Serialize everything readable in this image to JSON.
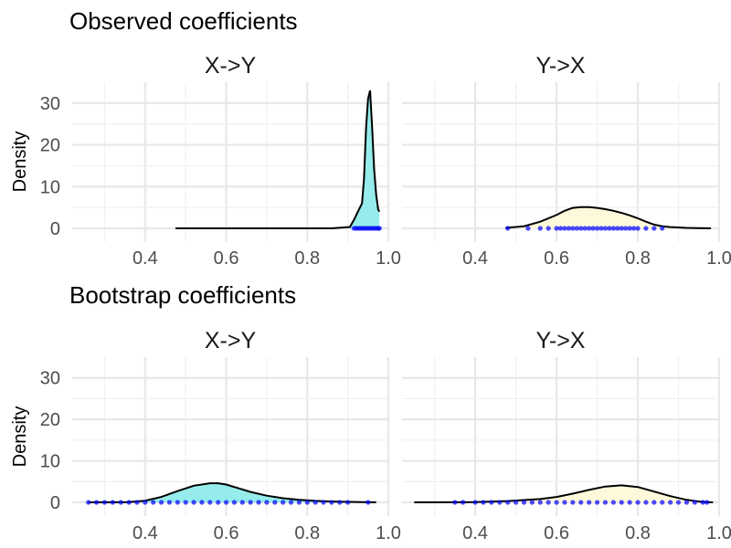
{
  "chart_data": [
    {
      "title": "Observed coefficients",
      "type": "area",
      "ylabel": "Density",
      "xlim": [
        0.22,
        1.0
      ],
      "ylim": [
        0,
        35
      ],
      "x_ticks": [
        "0.4",
        "0.6",
        "0.8",
        "1.0"
      ],
      "y_ticks": [
        "0",
        "10",
        "20",
        "30"
      ],
      "grid": true,
      "panels": [
        {
          "facet_label": "X->Y",
          "fill": "#96ecea",
          "density_x": [
            0.475,
            0.86,
            0.905,
            0.915,
            0.925,
            0.935,
            0.94,
            0.945,
            0.95,
            0.955,
            0.96,
            0.965,
            0.97,
            0.975,
            0.978
          ],
          "density_y": [
            0,
            0,
            0.3,
            2,
            4,
            6,
            12,
            24,
            31,
            33,
            24,
            14,
            8,
            4.5,
            4
          ],
          "rug_x": [
            0.915,
            0.92,
            0.925,
            0.93,
            0.935,
            0.94,
            0.945,
            0.95,
            0.955,
            0.96,
            0.965,
            0.97,
            0.975,
            0.978
          ]
        },
        {
          "facet_label": "Y->X",
          "fill": "#fff9db",
          "density_x": [
            0.475,
            0.52,
            0.56,
            0.6,
            0.62,
            0.64,
            0.66,
            0.68,
            0.7,
            0.72,
            0.74,
            0.76,
            0.78,
            0.8,
            0.82,
            0.84,
            0.86,
            0.88,
            0.92,
            0.98
          ],
          "density_y": [
            0.1,
            0.5,
            1.6,
            3.2,
            4.2,
            4.9,
            5.1,
            5.1,
            4.9,
            4.6,
            4.2,
            3.7,
            3.1,
            2.4,
            1.6,
            0.9,
            0.5,
            0.3,
            0.1,
            0
          ],
          "rug_x": [
            0.48,
            0.53,
            0.56,
            0.58,
            0.6,
            0.61,
            0.62,
            0.63,
            0.64,
            0.65,
            0.66,
            0.67,
            0.68,
            0.69,
            0.7,
            0.71,
            0.72,
            0.73,
            0.74,
            0.75,
            0.76,
            0.77,
            0.78,
            0.79,
            0.8,
            0.82,
            0.84,
            0.86
          ]
        }
      ]
    },
    {
      "title": "Bootstrap coefficients",
      "type": "area",
      "ylabel": "Density",
      "xlim": [
        0.22,
        1.0
      ],
      "ylim": [
        0,
        35
      ],
      "x_ticks": [
        "0.4",
        "0.6",
        "0.8",
        "1.0"
      ],
      "y_ticks": [
        "0",
        "10",
        "20",
        "30"
      ],
      "grid": true,
      "panels": [
        {
          "facet_label": "X->Y",
          "fill": "#96ecea",
          "density_x": [
            0.26,
            0.36,
            0.4,
            0.44,
            0.48,
            0.52,
            0.56,
            0.58,
            0.6,
            0.63,
            0.66,
            0.7,
            0.74,
            0.78,
            0.82,
            0.86,
            0.9,
            0.97
          ],
          "density_y": [
            0,
            0.05,
            0.4,
            1.3,
            2.7,
            4.0,
            4.6,
            4.6,
            4.3,
            3.4,
            2.5,
            1.6,
            1.0,
            0.6,
            0.35,
            0.2,
            0.1,
            0
          ],
          "rug_x": [
            0.26,
            0.28,
            0.3,
            0.32,
            0.34,
            0.36,
            0.38,
            0.4,
            0.42,
            0.44,
            0.46,
            0.48,
            0.5,
            0.52,
            0.54,
            0.56,
            0.58,
            0.6,
            0.62,
            0.64,
            0.66,
            0.68,
            0.7,
            0.72,
            0.74,
            0.76,
            0.78,
            0.8,
            0.82,
            0.84,
            0.86,
            0.88,
            0.9,
            0.95
          ]
        },
        {
          "facet_label": "Y->X",
          "fill": "#fff9db",
          "density_x": [
            0.25,
            0.4,
            0.48,
            0.56,
            0.6,
            0.64,
            0.68,
            0.72,
            0.76,
            0.8,
            0.84,
            0.88,
            0.92,
            0.95,
            0.97,
            0.985
          ],
          "density_y": [
            0,
            0.05,
            0.3,
            0.8,
            1.3,
            2.1,
            3.0,
            3.8,
            4.1,
            3.7,
            2.6,
            1.5,
            0.6,
            0.2,
            0.05,
            0
          ],
          "rug_x": [
            0.35,
            0.37,
            0.4,
            0.42,
            0.44,
            0.46,
            0.48,
            0.5,
            0.52,
            0.54,
            0.56,
            0.58,
            0.6,
            0.62,
            0.64,
            0.66,
            0.68,
            0.7,
            0.72,
            0.74,
            0.76,
            0.78,
            0.8,
            0.82,
            0.84,
            0.86,
            0.88,
            0.9,
            0.92,
            0.94,
            0.96,
            0.97
          ]
        }
      ]
    }
  ]
}
